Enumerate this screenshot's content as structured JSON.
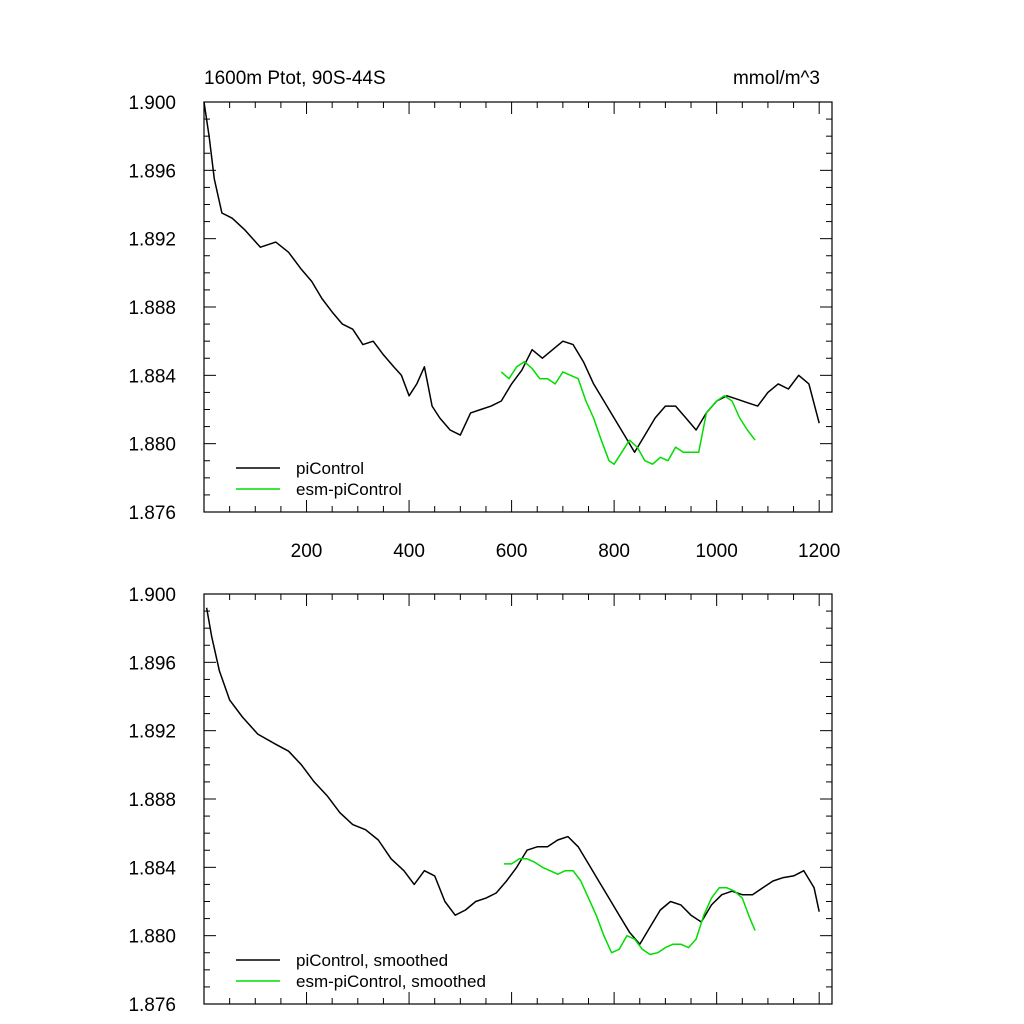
{
  "chart_data": [
    {
      "type": "line",
      "title_left": "1600m Ptot, 90S-44S",
      "title_right": "mmol/m^3",
      "xlim": [
        0,
        1225
      ],
      "ylim": [
        1.876,
        1.9
      ],
      "xticks": [
        200,
        400,
        600,
        800,
        1000,
        1200
      ],
      "xtick_labels": [
        "200",
        "400",
        "600",
        "800",
        "1000",
        "1200"
      ],
      "yticks": [
        1.876,
        1.88,
        1.884,
        1.888,
        1.892,
        1.896,
        1.9
      ],
      "ytick_labels": [
        "1.876",
        "1.880",
        "1.884",
        "1.888",
        "1.892",
        "1.896",
        "1.900"
      ],
      "legend_position": "bottom-left",
      "series": [
        {
          "name": "piControl",
          "color": "#000000",
          "x": [
            0,
            10,
            20,
            35,
            55,
            80,
            110,
            140,
            165,
            190,
            210,
            230,
            250,
            270,
            290,
            310,
            330,
            350,
            370,
            385,
            400,
            415,
            430,
            445,
            460,
            480,
            500,
            520,
            540,
            560,
            580,
            600,
            620,
            640,
            660,
            680,
            700,
            720,
            740,
            760,
            780,
            800,
            820,
            840,
            860,
            880,
            900,
            920,
            940,
            960,
            980,
            1000,
            1020,
            1040,
            1060,
            1080,
            1100,
            1120,
            1140,
            1160,
            1180,
            1200
          ],
          "values": [
            1.9,
            1.898,
            1.8955,
            1.8935,
            1.8932,
            1.8925,
            1.8915,
            1.8918,
            1.8912,
            1.8902,
            1.8895,
            1.8885,
            1.8877,
            1.887,
            1.8867,
            1.8858,
            1.886,
            1.8852,
            1.8845,
            1.884,
            1.8828,
            1.8835,
            1.8845,
            1.8822,
            1.8815,
            1.8808,
            1.8805,
            1.8818,
            1.882,
            1.8822,
            1.8825,
            1.8835,
            1.8843,
            1.8855,
            1.885,
            1.8855,
            1.886,
            1.8858,
            1.8848,
            1.8835,
            1.8825,
            1.8815,
            1.8805,
            1.8795,
            1.8805,
            1.8815,
            1.8822,
            1.8822,
            1.8815,
            1.8808,
            1.8818,
            1.8825,
            1.8828,
            1.8826,
            1.8824,
            1.8822,
            1.883,
            1.8835,
            1.8832,
            1.884,
            1.8835,
            1.8812
          ]
        },
        {
          "name": "esm-piControl",
          "color": "#00dd00",
          "x": [
            580,
            595,
            610,
            625,
            640,
            655,
            670,
            685,
            700,
            715,
            730,
            745,
            760,
            775,
            790,
            800,
            815,
            830,
            845,
            860,
            875,
            890,
            905,
            920,
            935,
            950,
            965,
            980,
            1000,
            1015,
            1030,
            1045,
            1060,
            1075
          ],
          "values": [
            1.8842,
            1.8838,
            1.8845,
            1.8848,
            1.8844,
            1.8838,
            1.8838,
            1.8835,
            1.8842,
            1.884,
            1.8838,
            1.8825,
            1.8815,
            1.8802,
            1.879,
            1.8788,
            1.8795,
            1.8802,
            1.8798,
            1.879,
            1.8788,
            1.8792,
            1.879,
            1.8798,
            1.8795,
            1.8795,
            1.8795,
            1.8818,
            1.8825,
            1.8828,
            1.8825,
            1.8815,
            1.8808,
            1.8802
          ]
        }
      ]
    },
    {
      "type": "line",
      "xlim": [
        0,
        1225
      ],
      "ylim": [
        1.876,
        1.9
      ],
      "xticks": [
        200,
        400,
        600,
        800,
        1000,
        1200
      ],
      "yticks": [
        1.876,
        1.88,
        1.884,
        1.888,
        1.892,
        1.896,
        1.9
      ],
      "ytick_labels": [
        "1.876",
        "1.880",
        "1.884",
        "1.888",
        "1.892",
        "1.896",
        "1.900"
      ],
      "legend_position": "bottom-left",
      "series": [
        {
          "name": "piControl, smoothed",
          "color": "#000000",
          "x": [
            5,
            15,
            30,
            50,
            75,
            105,
            140,
            165,
            190,
            215,
            240,
            265,
            290,
            315,
            340,
            365,
            390,
            410,
            430,
            450,
            470,
            490,
            510,
            530,
            550,
            570,
            590,
            610,
            630,
            650,
            670,
            690,
            710,
            730,
            750,
            770,
            790,
            810,
            830,
            850,
            870,
            890,
            910,
            930,
            950,
            970,
            990,
            1010,
            1030,
            1050,
            1070,
            1090,
            1110,
            1130,
            1150,
            1170,
            1190,
            1200
          ],
          "values": [
            1.8992,
            1.8975,
            1.8955,
            1.8938,
            1.8928,
            1.8918,
            1.8912,
            1.8908,
            1.89,
            1.889,
            1.8882,
            1.8872,
            1.8865,
            1.8862,
            1.8856,
            1.8845,
            1.8838,
            1.883,
            1.8838,
            1.8835,
            1.882,
            1.8812,
            1.8815,
            1.882,
            1.8822,
            1.8825,
            1.8832,
            1.884,
            1.885,
            1.8852,
            1.8852,
            1.8856,
            1.8858,
            1.8852,
            1.8842,
            1.8832,
            1.8822,
            1.8812,
            1.8802,
            1.8795,
            1.8805,
            1.8815,
            1.882,
            1.8818,
            1.8812,
            1.8808,
            1.8818,
            1.8824,
            1.8826,
            1.8824,
            1.8824,
            1.8828,
            1.8832,
            1.8834,
            1.8835,
            1.8838,
            1.8828,
            1.8814
          ]
        },
        {
          "name": "esm-piControl, smoothed",
          "color": "#00dd00",
          "x": [
            585,
            600,
            615,
            630,
            645,
            660,
            675,
            690,
            705,
            720,
            735,
            750,
            765,
            780,
            795,
            810,
            825,
            840,
            855,
            870,
            885,
            900,
            915,
            930,
            945,
            960,
            975,
            990,
            1005,
            1020,
            1035,
            1050,
            1065,
            1075
          ],
          "values": [
            1.8842,
            1.8842,
            1.8845,
            1.8845,
            1.8843,
            1.884,
            1.8838,
            1.8836,
            1.8838,
            1.8838,
            1.8832,
            1.8822,
            1.8812,
            1.88,
            1.879,
            1.8792,
            1.88,
            1.8798,
            1.8792,
            1.8789,
            1.879,
            1.8793,
            1.8795,
            1.8795,
            1.8793,
            1.8798,
            1.8812,
            1.8822,
            1.8828,
            1.8828,
            1.8826,
            1.8822,
            1.881,
            1.8803
          ]
        }
      ]
    }
  ]
}
